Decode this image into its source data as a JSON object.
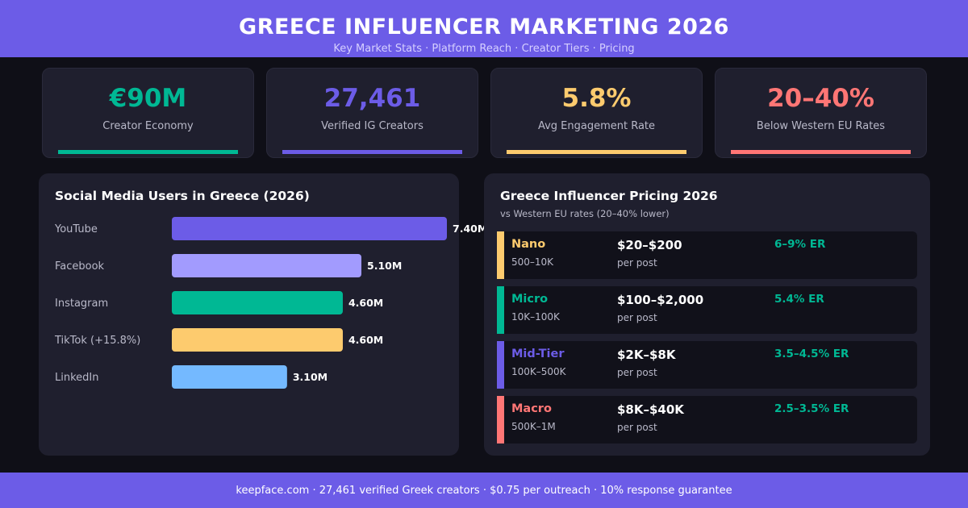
{
  "header": {
    "title": "GREECE INFLUENCER MARKETING 2026",
    "subtitle": "Key Market Stats  ·  Platform Reach  ·  Creator Tiers  ·  Pricing"
  },
  "stats": [
    {
      "value": "€90M",
      "label": "Creator Economy",
      "color": "#00b894"
    },
    {
      "value": "27,461",
      "label": "Verified IG Creators",
      "color": "#6c5ce7"
    },
    {
      "value": "5.8%",
      "label": "Avg Engagement Rate",
      "color": "#fdcb6e"
    },
    {
      "value": "20–40%",
      "label": "Below Western EU Rates",
      "color": "#ff7675"
    }
  ],
  "chart_data": {
    "type": "bar",
    "orientation": "horizontal",
    "title": "Social Media Users in Greece (2026)",
    "categories": [
      "YouTube",
      "Facebook",
      "Instagram",
      "TikTok (+15.8%)",
      "LinkedIn"
    ],
    "values": [
      7.4,
      5.1,
      4.6,
      4.6,
      3.1
    ],
    "value_labels": [
      "7.40M",
      "5.10M",
      "4.60M",
      "4.60M",
      "3.10M"
    ],
    "colors": [
      "#6c5ce7",
      "#a29bfe",
      "#00b894",
      "#fdcb6e",
      "#74b9ff"
    ],
    "xlim": [
      0,
      7.4
    ],
    "grid": false,
    "legend": "none"
  },
  "pricing": {
    "title": "Greece Influencer Pricing 2026",
    "subtitle": "vs Western EU rates (20–40% lower)",
    "tiers": [
      {
        "name": "Nano",
        "range": "500–10K",
        "price": "$20–$200",
        "per": "per post",
        "er": "6–9% ER",
        "color": "#fdcb6e"
      },
      {
        "name": "Micro",
        "range": "10K–100K",
        "price": "$100–$2,000",
        "per": "per post",
        "er": "5.4% ER",
        "color": "#00b894"
      },
      {
        "name": "Mid-Tier",
        "range": "100K–500K",
        "price": "$2K–$8K",
        "per": "per post",
        "er": "3.5–4.5% ER",
        "color": "#6c5ce7"
      },
      {
        "name": "Macro",
        "range": "500K–1M",
        "price": "$8K–$40K",
        "per": "per post",
        "er": "2.5–3.5% ER",
        "color": "#ff7675"
      }
    ]
  },
  "footer": {
    "text": "keepface.com · 27,461 verified Greek creators · $0.75 per outreach · 10% response guarantee"
  }
}
